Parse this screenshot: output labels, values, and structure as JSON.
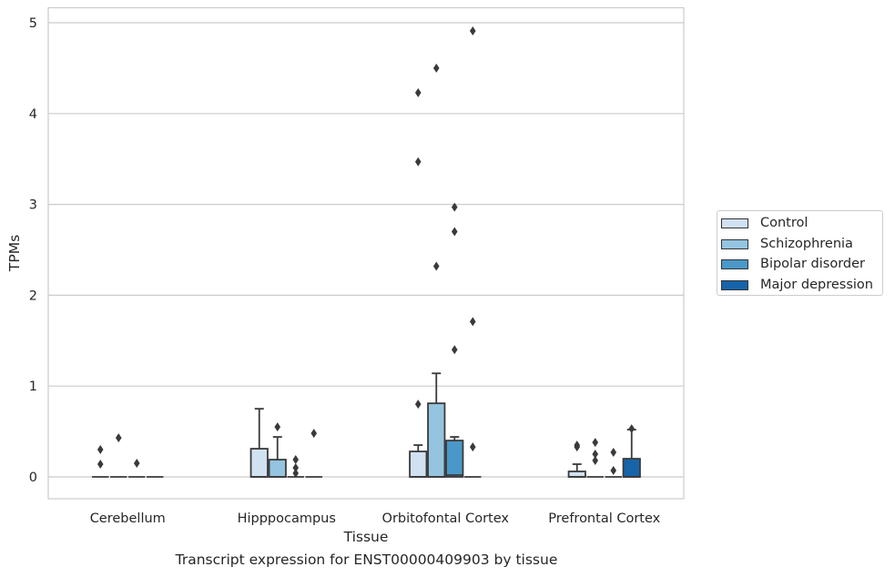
{
  "chart_data": {
    "type": "box",
    "title": "",
    "xlabel": "Tissue",
    "ylabel": "TPMs",
    "caption": "Transcript expression for ENST00000409903 by tissue",
    "ylim": [
      -0.24,
      5.16
    ],
    "yticks": [
      0,
      1,
      2,
      3,
      4,
      5
    ],
    "grid": true,
    "legend_position": "right",
    "categories": [
      "Cerebellum",
      "Hipppocampus",
      "Orbitofontal Cortex",
      "Prefrontal Cortex"
    ],
    "series": [
      {
        "name": "Control",
        "color": "#d0e1f2",
        "boxes": [
          {
            "q1": 0,
            "median": 0,
            "q3": 0,
            "whisker_low": 0,
            "whisker_high": 0,
            "outliers": [
              0.3,
              0.14
            ]
          },
          {
            "q1": 0,
            "median": 0,
            "q3": 0.31,
            "whisker_low": 0,
            "whisker_high": 0.75,
            "outliers": []
          },
          {
            "q1": 0,
            "median": 0,
            "q3": 0.28,
            "whisker_low": 0,
            "whisker_high": 0.35,
            "outliers": [
              0.8,
              3.47,
              4.23
            ]
          },
          {
            "q1": 0,
            "median": 0,
            "q3": 0.06,
            "whisker_low": 0,
            "whisker_high": 0.14,
            "outliers": [
              0.35,
              0.33
            ]
          }
        ]
      },
      {
        "name": "Schizophrenia",
        "color": "#94c4df",
        "boxes": [
          {
            "q1": 0,
            "median": 0,
            "q3": 0,
            "whisker_low": 0,
            "whisker_high": 0,
            "outliers": [
              0.43
            ]
          },
          {
            "q1": 0,
            "median": 0,
            "q3": 0.19,
            "whisker_low": 0,
            "whisker_high": 0.44,
            "outliers": [
              0.55
            ]
          },
          {
            "q1": 0,
            "median": 0,
            "q3": 0.81,
            "whisker_low": 0,
            "whisker_high": 1.14,
            "outliers": [
              2.32,
              4.5
            ]
          },
          {
            "q1": 0,
            "median": 0,
            "q3": 0,
            "whisker_low": 0,
            "whisker_high": 0,
            "outliers": [
              0.38,
              0.25,
              0.18
            ]
          }
        ]
      },
      {
        "name": "Bipolar disorder",
        "color": "#4a98c9",
        "boxes": [
          {
            "q1": 0,
            "median": 0,
            "q3": 0,
            "whisker_low": 0,
            "whisker_high": 0,
            "outliers": [
              0.15
            ]
          },
          {
            "q1": 0,
            "median": 0,
            "q3": 0,
            "whisker_low": 0,
            "whisker_high": 0,
            "outliers": [
              0.19,
              0.1,
              0.04
            ]
          },
          {
            "q1": 0,
            "median": 0.02,
            "q3": 0.4,
            "whisker_low": 0,
            "whisker_high": 0.44,
            "outliers": [
              1.4,
              2.7,
              2.97
            ]
          },
          {
            "q1": 0,
            "median": 0,
            "q3": 0,
            "whisker_low": 0,
            "whisker_high": 0,
            "outliers": [
              0.27,
              0.07
            ]
          }
        ]
      },
      {
        "name": "Major depression",
        "color": "#1764ab",
        "boxes": [
          {
            "q1": 0,
            "median": 0,
            "q3": 0,
            "whisker_low": 0,
            "whisker_high": 0,
            "outliers": []
          },
          {
            "q1": 0,
            "median": 0,
            "q3": 0,
            "whisker_low": 0,
            "whisker_high": 0,
            "outliers": [
              0.48
            ]
          },
          {
            "q1": 0,
            "median": 0,
            "q3": 0,
            "whisker_low": 0,
            "whisker_high": 0,
            "outliers": [
              0.33,
              1.71,
              4.91
            ]
          },
          {
            "q1": 0,
            "median": 0,
            "q3": 0.2,
            "whisker_low": 0,
            "whisker_high": 0.52,
            "outliers": [
              0.53
            ]
          }
        ]
      }
    ]
  }
}
